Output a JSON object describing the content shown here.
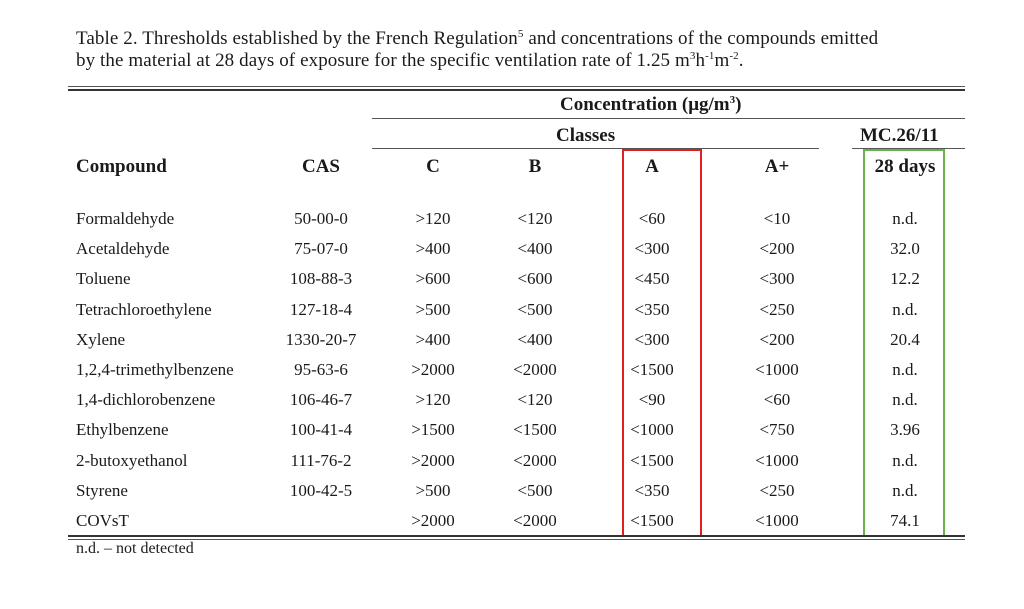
{
  "caption": {
    "part1": "Table 2. Thresholds established by the French Regulation",
    "ref": "5",
    "part2": " and concentrations of the compounds emitted",
    "line2a": "by the material at 28 days of exposure for the specific ventilation rate of 1.25 m",
    "sup1": "3",
    "line2b": "h",
    "sup2": "-1",
    "line2c": "m",
    "sup3": "-2",
    "line2d": "."
  },
  "header": {
    "concentration_a": "Concentration (μg/m",
    "concentration_sup": "3",
    "concentration_b": ")",
    "classes": "Classes",
    "mc": "MC.26/11",
    "compound": "Compound",
    "cas": "CAS",
    "c": "C",
    "b": "B",
    "a": "A",
    "a_plus": "A+",
    "days": "28 days"
  },
  "rows": [
    {
      "name": "Formaldehyde",
      "cas": "50-00-0",
      "c": ">120",
      "b": "<120",
      "a": "<60",
      "ap": "<10",
      "mc": "n.d."
    },
    {
      "name": "Acetaldehyde",
      "cas": "75-07-0",
      "c": ">400",
      "b": "<400",
      "a": "<300",
      "ap": "<200",
      "mc": "32.0"
    },
    {
      "name": "Toluene",
      "cas": "108-88-3",
      "c": ">600",
      "b": "<600",
      "a": "<450",
      "ap": "<300",
      "mc": "12.2"
    },
    {
      "name": "Tetrachloroethylene",
      "cas": "127-18-4",
      "c": ">500",
      "b": "<500",
      "a": "<350",
      "ap": "<250",
      "mc": "n.d."
    },
    {
      "name": "Xylene",
      "cas": "1330-20-7",
      "c": ">400",
      "b": "<400",
      "a": "<300",
      "ap": "<200",
      "mc": "20.4"
    },
    {
      "name": "1,2,4-trimethylbenzene",
      "cas": "95-63-6",
      "c": ">2000",
      "b": "<2000",
      "a": "<1500",
      "ap": "<1000",
      "mc": "n.d."
    },
    {
      "name": "1,4-dichlorobenzene",
      "cas": "106-46-7",
      "c": ">120",
      "b": "<120",
      "a": "<90",
      "ap": "<60",
      "mc": "n.d."
    },
    {
      "name": "Ethylbenzene",
      "cas": "100-41-4",
      "c": ">1500",
      "b": "<1500",
      "a": "<1000",
      "ap": "<750",
      "mc": "3.96"
    },
    {
      "name": "2-butoxyethanol",
      "cas": "111-76-2",
      "c": ">2000",
      "b": "<2000",
      "a": "<1500",
      "ap": "<1000",
      "mc": "n.d."
    },
    {
      "name": "Styrene",
      "cas": "100-42-5",
      "c": ">500",
      "b": "<500",
      "a": "<350",
      "ap": "<250",
      "mc": "n.d."
    },
    {
      "name": "COVsT",
      "cas": "",
      "c": ">2000",
      "b": "<2000",
      "a": "<1500",
      "ap": "<1000",
      "mc": "74.1"
    }
  ],
  "footnote": "n.d. – not detected",
  "highlight_colors": {
    "column_a": "#e02020",
    "column_mc": "#6ab04c"
  }
}
